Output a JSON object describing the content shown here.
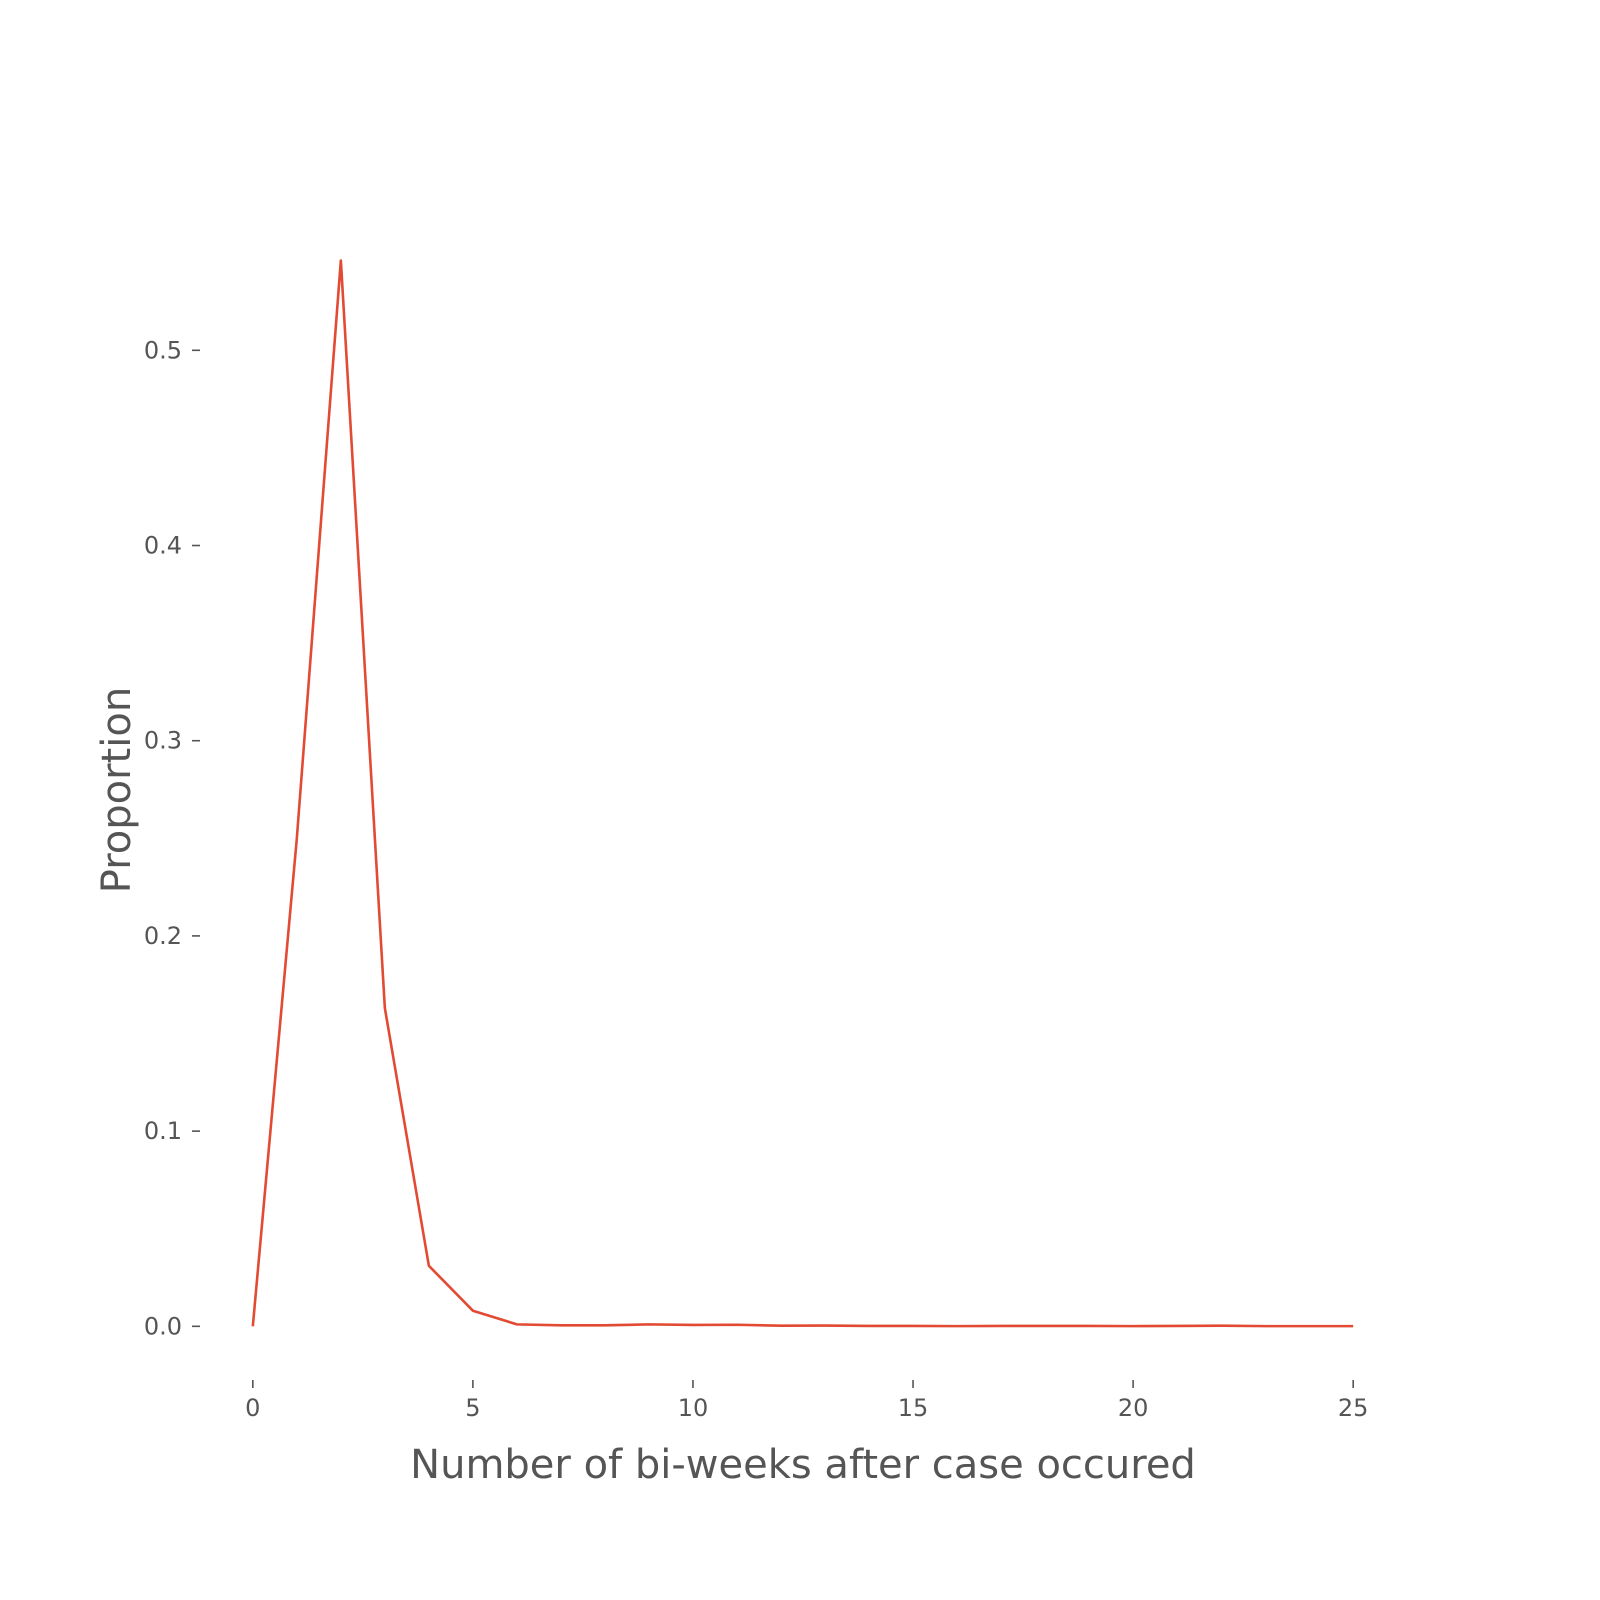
{
  "chart_data": {
    "type": "line",
    "title": "",
    "xlabel": "Number of bi-weeks after case occured",
    "ylabel": "Proportion",
    "xlim": [
      -1.2,
      26.2
    ],
    "ylim": [
      -0.0275,
      0.577
    ],
    "xticks": [
      0,
      5,
      10,
      15,
      20,
      25
    ],
    "xtick_labels": [
      "0",
      "5",
      "10",
      "15",
      "20",
      "25"
    ],
    "yticks": [
      0.0,
      0.1,
      0.2,
      0.3,
      0.4,
      0.5
    ],
    "ytick_labels": [
      "0.0",
      "0.1",
      "0.2",
      "0.3",
      "0.4",
      "0.5"
    ],
    "grid": false,
    "legend": "none",
    "series": [
      {
        "color": "#E24A33",
        "x": [
          0,
          1,
          2,
          3,
          4,
          5,
          6,
          7,
          8,
          9,
          10,
          11,
          12,
          13,
          14,
          15,
          16,
          17,
          18,
          19,
          20,
          21,
          22,
          23,
          24,
          25
        ],
        "y": [
          0.0,
          0.25,
          0.546,
          0.163,
          0.031,
          0.008,
          0.001,
          0.0005,
          0.0005,
          0.001,
          0.0007,
          0.0008,
          0.0003,
          0.0004,
          0.0002,
          0.0002,
          0.0001,
          0.0002,
          0.0002,
          0.0002,
          0.0001,
          0.0002,
          0.0003,
          0.0001,
          0.0001,
          0.0001
        ]
      }
    ]
  }
}
